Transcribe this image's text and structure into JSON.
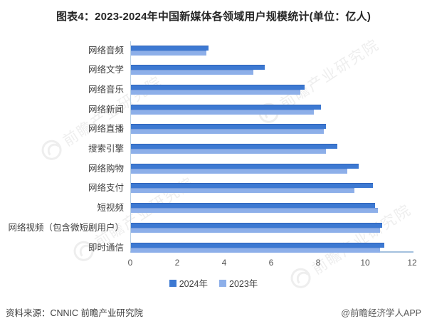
{
  "title": "图表4：2023-2024年中国新媒体各领域用户规模统计(单位：亿人)",
  "chart_data": {
    "type": "bar",
    "orientation": "horizontal",
    "title": "图表4：2023-2024年中国新媒体各领域用户规模统计(单位：亿人)",
    "unit": "亿人",
    "categories": [
      "网络音频",
      "网络文学",
      "网络音乐",
      "网络新闻",
      "网络直播",
      "搜索引擎",
      "网络购物",
      "网络支付",
      "短视频",
      "网络视频（包含微短剧用户）",
      "即时通信"
    ],
    "series": [
      {
        "name": "2024年",
        "color": "#3d79d2",
        "values": [
          3.3,
          5.7,
          7.4,
          8.1,
          8.3,
          8.8,
          9.7,
          10.3,
          10.4,
          10.7,
          10.8
        ]
      },
      {
        "name": "2023年",
        "color": "#8dafe9",
        "values": [
          3.2,
          5.2,
          7.2,
          7.8,
          8.2,
          8.3,
          9.2,
          9.5,
          10.5,
          10.6,
          10.6
        ]
      }
    ],
    "xlim": [
      0,
      12
    ],
    "xticks": [
      0,
      2,
      4,
      6,
      8,
      10,
      12
    ],
    "grid": false,
    "legend_position": "bottom"
  },
  "footer": {
    "source": "资料来源：CNNIC 前瞻产业研究院",
    "credit": "@前瞻经济学人APP"
  },
  "watermark": {
    "text": "前瞻产业研究院"
  },
  "colors": {
    "bar_2024": "#3d79d2",
    "bar_2023": "#8dafe9",
    "axis_line": "#a3c0de",
    "title_text": "#262626",
    "label_text": "#3f3f3f"
  }
}
